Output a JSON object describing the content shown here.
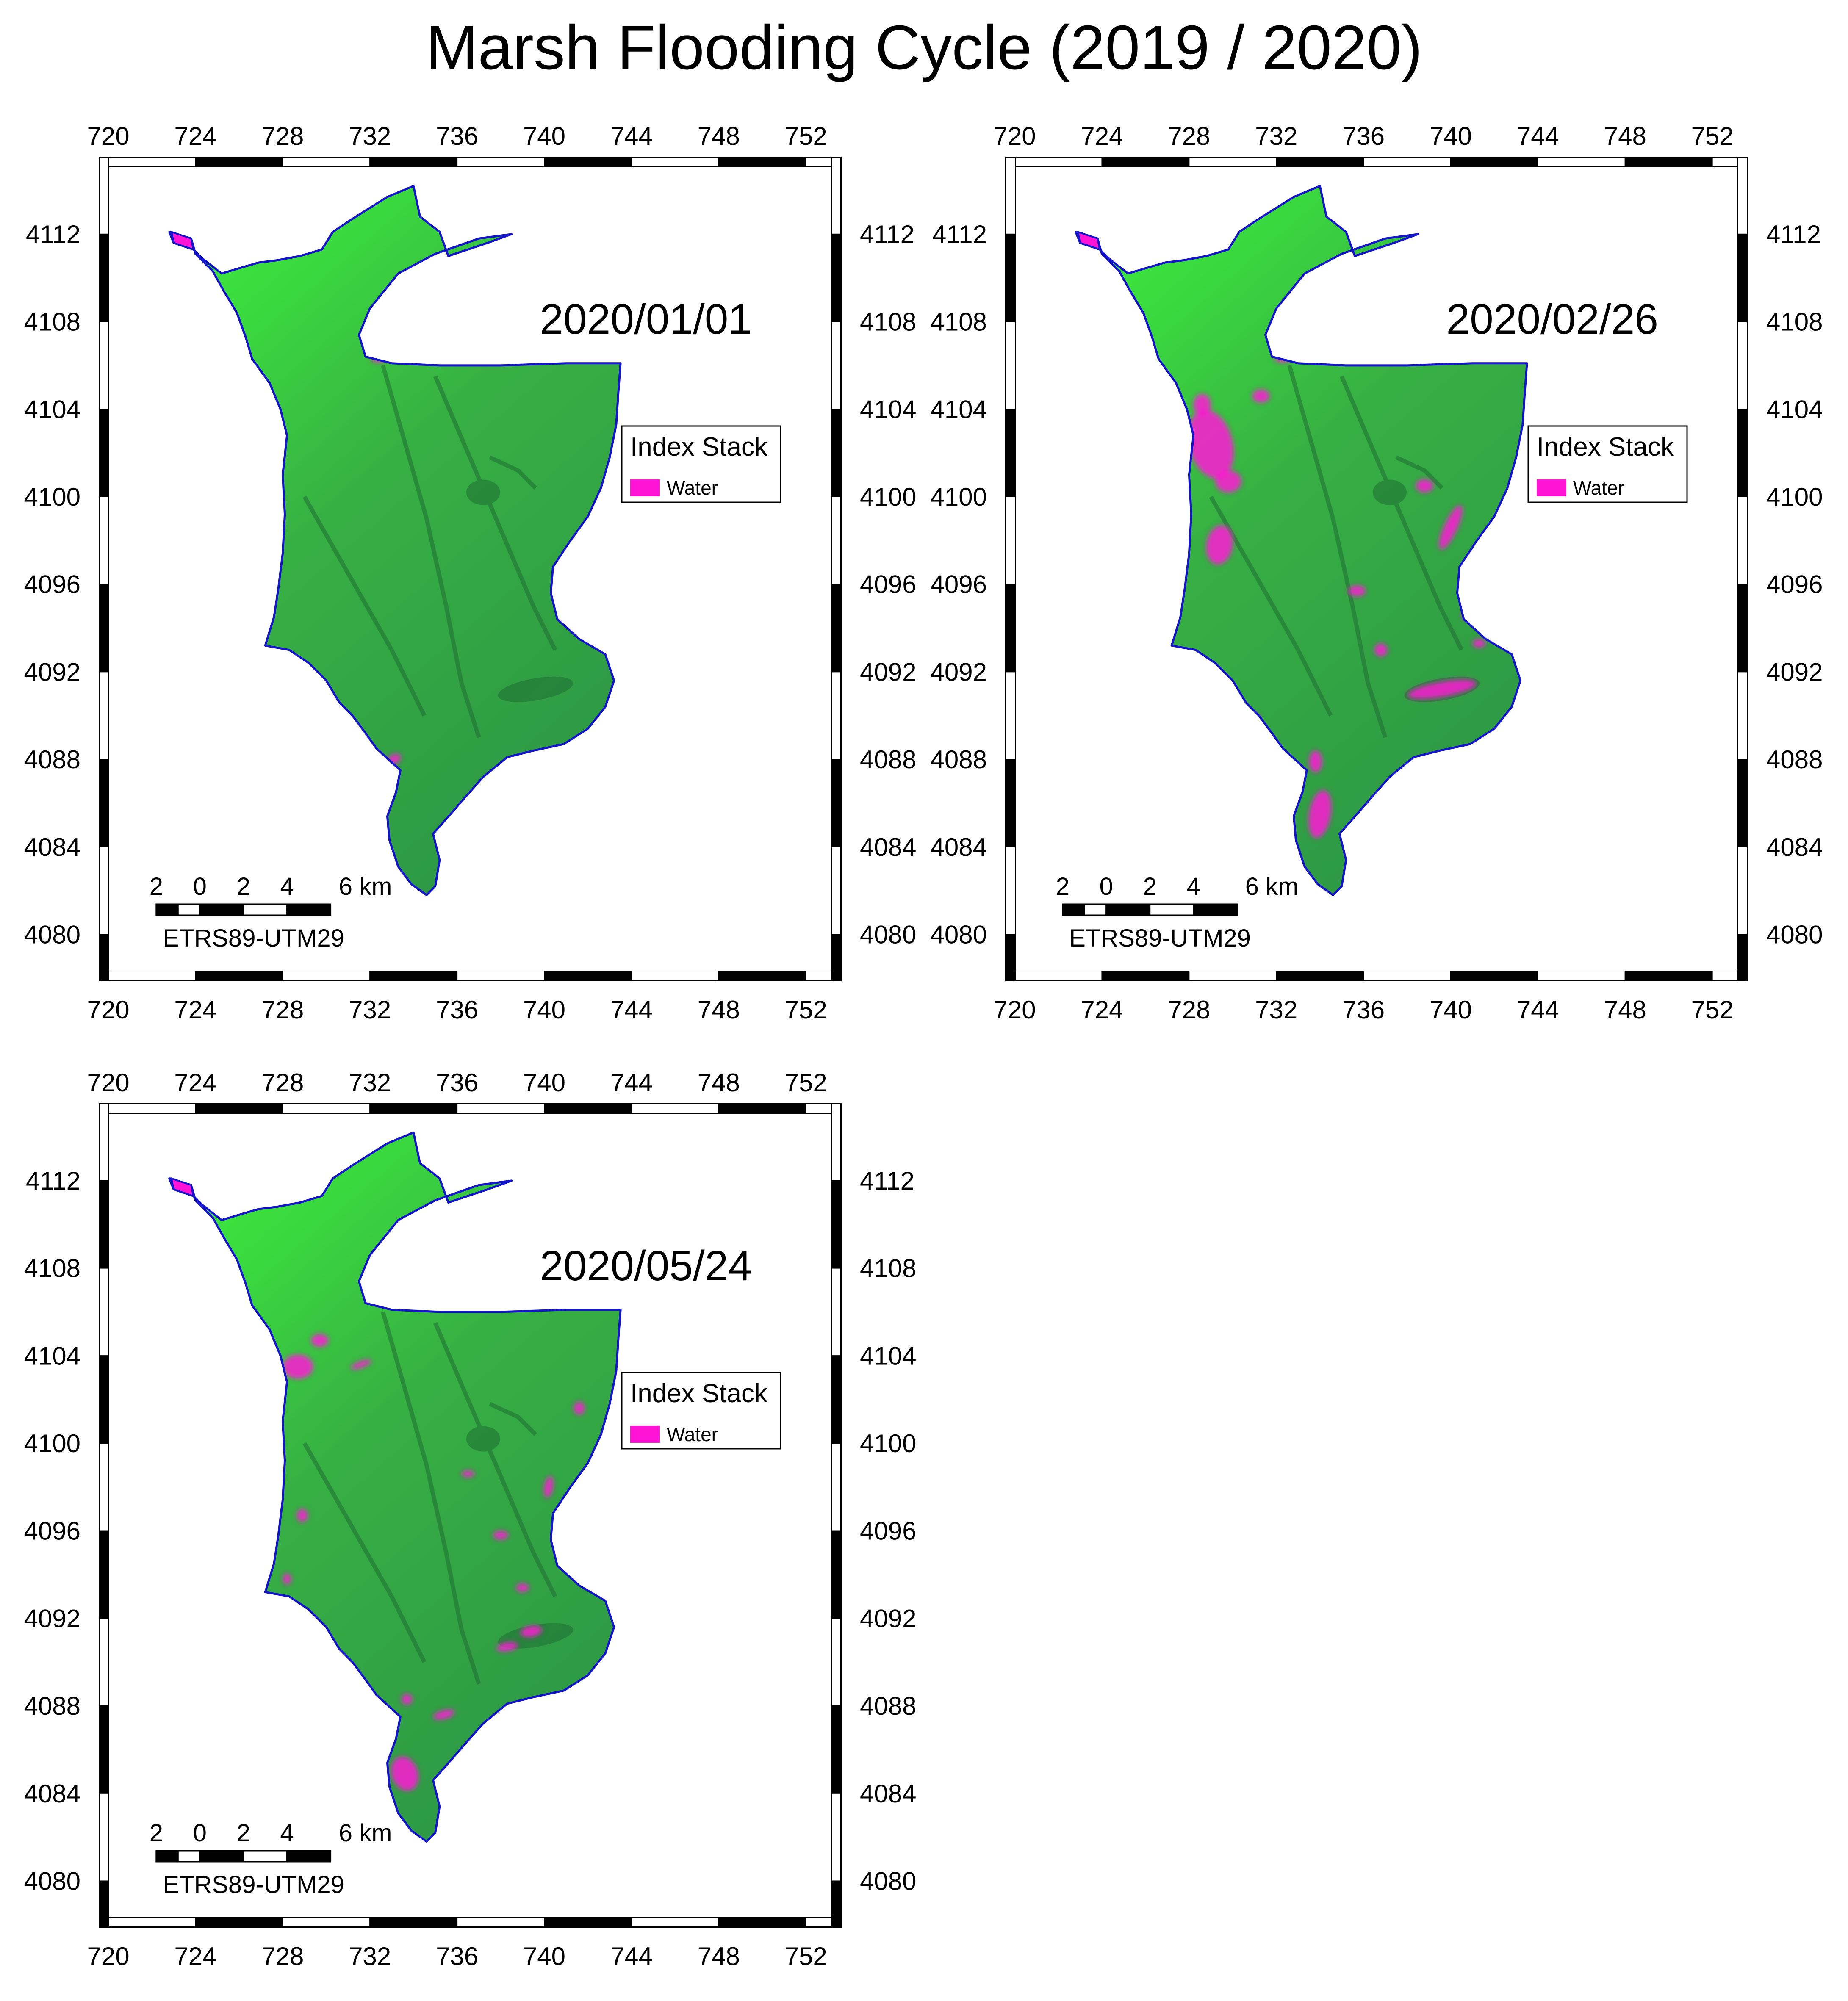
{
  "title": "Marsh Flooding Cycle (2019 / 2020)",
  "axes": {
    "x_ticks": [
      "720",
      "724",
      "728",
      "732",
      "736",
      "740",
      "744",
      "748",
      "752"
    ],
    "y_ticks": [
      "4112",
      "4108",
      "4104",
      "4100",
      "4096",
      "4092",
      "4088",
      "4084",
      "4080"
    ]
  },
  "legend": {
    "title": "Index Stack",
    "items": [
      {
        "label": "Water",
        "color": "#ff14d6"
      }
    ]
  },
  "scale_bar": {
    "labels": [
      "2",
      "0",
      "2",
      "4",
      "6 km"
    ],
    "crs": "ETRS89-UTM29"
  },
  "colors": {
    "vegetation_bright": "#3cf23c",
    "vegetation_dark": "#2e9a45",
    "water": "#ff14d6",
    "boundary": "#1414c8"
  },
  "panels": [
    {
      "date": "2020/01/01",
      "flooding": "minimal"
    },
    {
      "date": "2020/02/26",
      "flooding": "high"
    },
    {
      "date": "2020/05/24",
      "flooding": "moderate"
    }
  ]
}
